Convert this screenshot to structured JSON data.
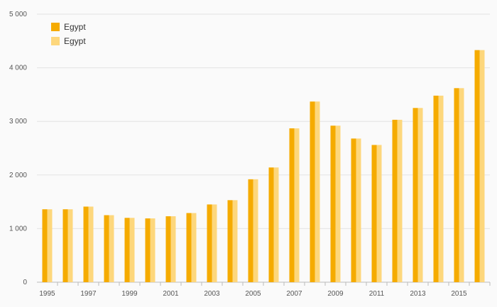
{
  "chart_data": {
    "type": "bar",
    "title": "",
    "xlabel": "",
    "ylabel": "",
    "ylim": [
      0,
      5000
    ],
    "yticks": [
      0,
      1000,
      2000,
      3000,
      4000,
      5000
    ],
    "ytick_labels": [
      "0",
      "1 000",
      "2 000",
      "3 000",
      "4 000",
      "5 000"
    ],
    "categories": [
      "1995",
      "1996",
      "1997",
      "1998",
      "1999",
      "2000",
      "2001",
      "2002",
      "2003",
      "2004",
      "2005",
      "2006",
      "2007",
      "2008",
      "2009",
      "2010",
      "2011",
      "2012",
      "2013",
      "2014",
      "2015",
      "2016"
    ],
    "xtick_labels": [
      "1995",
      "1997",
      "1999",
      "2001",
      "2003",
      "2005",
      "2007",
      "2009",
      "2011",
      "2013",
      "2015"
    ],
    "grid": true,
    "legend_position": "top-left",
    "series": [
      {
        "name": "Egypt",
        "color": "#f5ab00",
        "values": [
          1360,
          1360,
          1410,
          1250,
          1200,
          1190,
          1230,
          1290,
          1450,
          1530,
          1920,
          2140,
          2870,
          3370,
          2920,
          2680,
          2560,
          3030,
          3250,
          3480,
          3620,
          4330
        ]
      },
      {
        "name": "Egypt",
        "color": "#fdd77c",
        "values": [
          1360,
          1360,
          1410,
          1250,
          1200,
          1190,
          1230,
          1290,
          1450,
          1530,
          1920,
          2140,
          2870,
          3370,
          2920,
          2680,
          2560,
          3030,
          3250,
          3480,
          3620,
          4330
        ]
      }
    ]
  }
}
